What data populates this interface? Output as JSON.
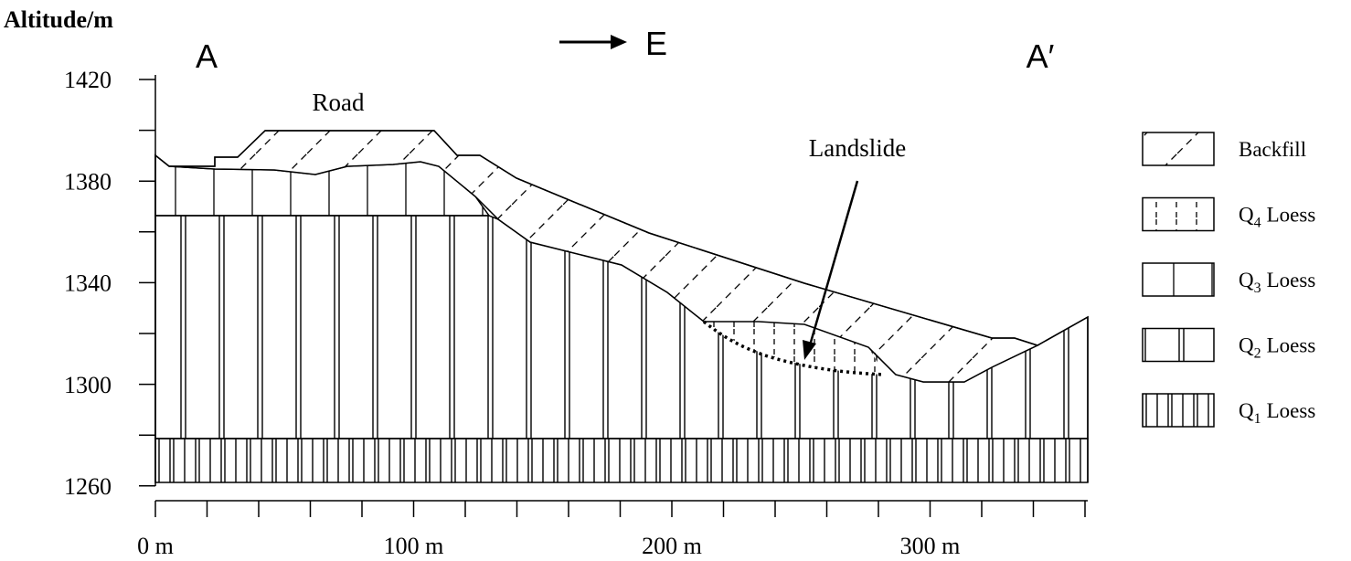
{
  "y_axis": {
    "label": "Altitude/m",
    "ticks": [
      1420,
      1380,
      1340,
      1300,
      1260
    ]
  },
  "x_axis": {
    "ticks": [
      "0 m",
      "100 m",
      "200 m",
      "300 m"
    ]
  },
  "section_labels": {
    "start": "A",
    "direction": "E",
    "end": "A′"
  },
  "annotations": {
    "road": "Road",
    "landslide": "Landslide"
  },
  "legend": [
    {
      "label": "Backfill"
    },
    {
      "prefix": "Q",
      "subscript": "4",
      "suffix": "Loess"
    },
    {
      "prefix": "Q",
      "subscript": "3",
      "suffix": "Loess"
    },
    {
      "prefix": "Q",
      "subscript": "2",
      "suffix": "Loess"
    },
    {
      "prefix": "Q",
      "subscript": "1",
      "suffix": "Loess"
    }
  ]
}
